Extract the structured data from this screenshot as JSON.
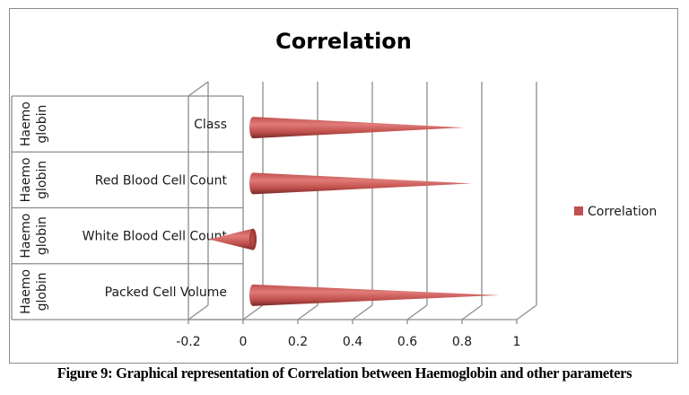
{
  "chart_data": {
    "type": "bar",
    "style": "3d-cone-horizontal",
    "title": "Correlation",
    "categories": [
      "Packed Cell Volume",
      "White Blood Cell Count",
      "Red Blood Cell Count",
      "Class"
    ],
    "outer_category": "Haemo globin",
    "outer_category_lines": [
      "Haemo",
      "globin"
    ],
    "series": [
      {
        "name": "Correlation",
        "values": [
          0.9,
          -0.16,
          0.8,
          0.77
        ],
        "color": "#c0504d"
      }
    ],
    "xlim": [
      -0.2,
      1
    ],
    "x_ticks": [
      "-0.2",
      "0",
      "0.2",
      "0.4",
      "0.6",
      "0.8",
      "1"
    ],
    "xlabel": "",
    "ylabel": "",
    "grid": true,
    "legend": "right"
  },
  "caption": "Figure 9: Graphical representation of Correlation between Haemoglobin and other parameters",
  "colors": {
    "axis": "#8c8c8c",
    "cone": "#c0504d",
    "cone_dark": "#7a2a28",
    "cone_light": "#e07b78"
  }
}
